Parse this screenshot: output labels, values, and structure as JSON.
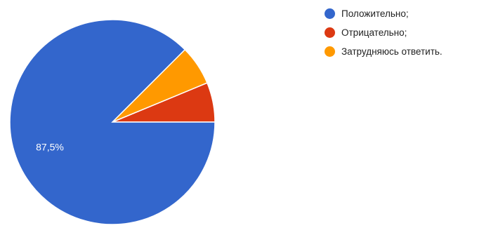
{
  "chart_data": {
    "type": "pie",
    "title": "",
    "slices": [
      {
        "label": "Положительно;",
        "value": 87.5,
        "display": "87,5%",
        "color": "#3366cc"
      },
      {
        "label": "Отрицательно;",
        "value": 6.25,
        "display": "",
        "color": "#dc3912"
      },
      {
        "label": "Затрудняюсь ответить.",
        "value": 6.25,
        "display": "",
        "color": "#ff9900"
      }
    ],
    "start_direction": "right",
    "slice_order": "counterclockwise-from-right",
    "legend_position": "top-right"
  }
}
